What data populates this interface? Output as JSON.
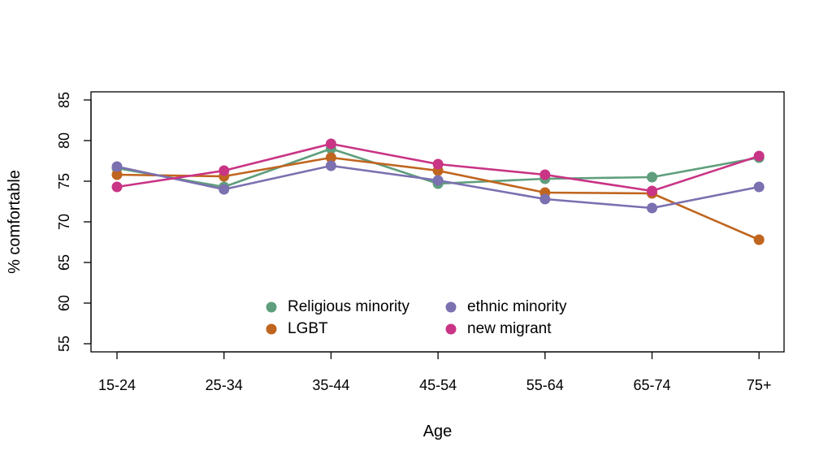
{
  "chart_data": {
    "type": "line",
    "title": "",
    "xlabel": "Age",
    "ylabel": "% comfortable",
    "categories": [
      "15-24",
      "25-34",
      "35-44",
      "45-54",
      "55-64",
      "65-74",
      "75+"
    ],
    "ylim": [
      54,
      86
    ],
    "yticks": [
      55,
      60,
      65,
      70,
      75,
      80,
      85
    ],
    "grid": false,
    "legend_position": "bottom-center",
    "series": [
      {
        "name": "Religious minority",
        "color": "#5e9e7c",
        "values": [
          76.6,
          74.3,
          79.0,
          74.7,
          75.3,
          75.5,
          77.9
        ]
      },
      {
        "name": "LGBT",
        "color": "#c0651f",
        "values": [
          75.8,
          75.6,
          77.9,
          76.3,
          73.6,
          73.5,
          67.8
        ]
      },
      {
        "name": "ethnic minority",
        "color": "#7b70b0",
        "values": [
          76.8,
          74.0,
          76.9,
          75.1,
          72.8,
          71.7,
          74.3
        ]
      },
      {
        "name": "new migrant",
        "color": "#c93485",
        "values": [
          74.3,
          76.3,
          79.6,
          77.1,
          75.8,
          73.8,
          78.1
        ]
      }
    ]
  }
}
